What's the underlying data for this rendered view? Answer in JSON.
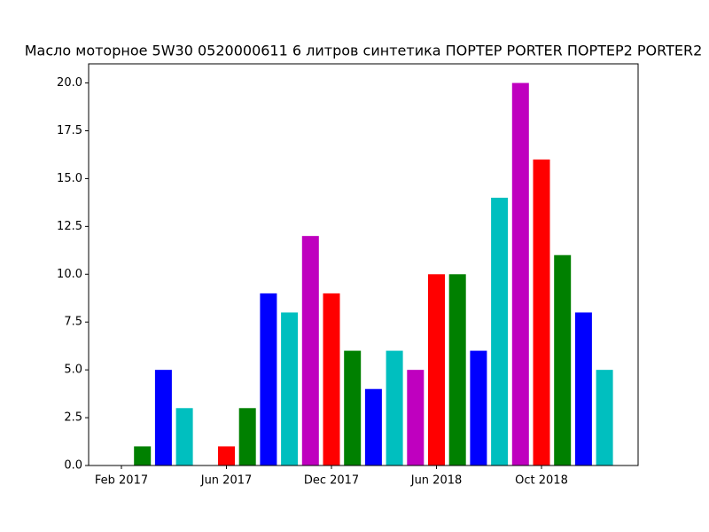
{
  "chart_data": {
    "type": "bar",
    "title": "Масло моторное 5W30 0520000611 6 литров синтетика ПОРТЕР PORTER ПОРТЕР2 PORTER2",
    "categories": [
      "Feb 2017",
      null,
      null,
      null,
      null,
      "Jun 2017",
      null,
      null,
      null,
      null,
      "Dec 2017",
      null,
      null,
      null,
      null,
      "Jun 2018",
      null,
      null,
      null,
      null,
      "Oct 2018",
      null,
      null,
      null
    ],
    "values": [
      0,
      1,
      5,
      3,
      0,
      1,
      3,
      9,
      8,
      12,
      9,
      6,
      4,
      6,
      5,
      10,
      10,
      6,
      14,
      20,
      16,
      11,
      8,
      5
    ],
    "colors": [
      "#ff0000",
      "#008000",
      "#0000ff",
      "#00bfbf",
      "#bf00bf"
    ],
    "ylim": [
      0,
      21
    ],
    "yticks": [
      {
        "value": 0,
        "label": "0.0"
      },
      2.5,
      {
        "value": 5,
        "label": "5.0"
      },
      7.5,
      {
        "value": 10,
        "label": "10.0"
      },
      12.5,
      {
        "value": 15,
        "label": "15.0"
      },
      17.5,
      {
        "value": 20,
        "label": "20.0"
      }
    ],
    "grid": false
  }
}
